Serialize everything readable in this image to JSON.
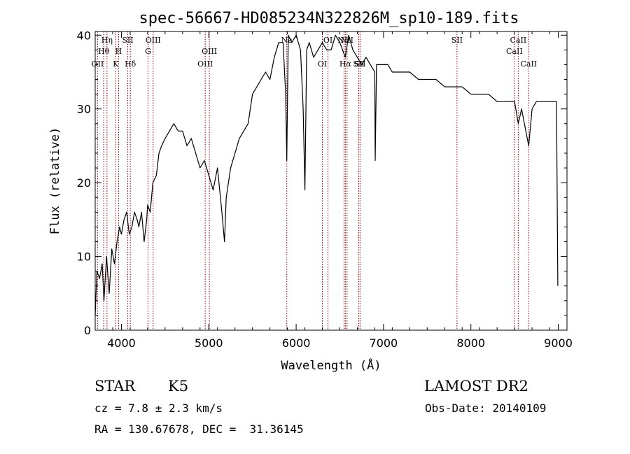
{
  "chart_data": {
    "type": "line",
    "title": "spec-56667-HD085234N322826M_sp10-189.fits",
    "xlabel": "Wavelength (Å)",
    "ylabel": "Flux (relative)",
    "xlim": [
      3700,
      9100
    ],
    "ylim": [
      0,
      40.5
    ],
    "x_ticks": [
      4000,
      5000,
      6000,
      7000,
      8000,
      9000
    ],
    "y_ticks": [
      0,
      10,
      20,
      30,
      40
    ],
    "grid": false,
    "series": [
      {
        "x": [
          3700,
          3720,
          3750,
          3780,
          3800,
          3830,
          3860,
          3890,
          3920,
          3950,
          3980,
          4000,
          4030,
          4060,
          4090,
          4120,
          4150,
          4180,
          4200,
          4230,
          4260,
          4290,
          4300,
          4330,
          4360,
          4400,
          4430,
          4460,
          4500,
          4550,
          4600,
          4650,
          4700,
          4750,
          4800,
          4850,
          4900,
          4950,
          5000,
          5050,
          5100,
          5150,
          5180,
          5200,
          5250,
          5300,
          5350,
          5400,
          5450,
          5500,
          5550,
          5600,
          5650,
          5700,
          5750,
          5800,
          5850,
          5880,
          5893,
          5910,
          5950,
          6000,
          6050,
          6080,
          6100,
          6120,
          6150,
          6200,
          6250,
          6300,
          6350,
          6400,
          6450,
          6500,
          6563,
          6600,
          6650,
          6700,
          6750,
          6800,
          6850,
          6900,
          6905,
          6920,
          6950,
          7000,
          7050,
          7100,
          7150,
          7200,
          7300,
          7400,
          7500,
          7600,
          7700,
          7800,
          7900,
          8000,
          8100,
          8200,
          8300,
          8400,
          8500,
          8542,
          8580,
          8662,
          8700,
          8750,
          8800,
          8850,
          8900,
          8950,
          8980,
          8995
        ],
        "y": [
          2,
          8,
          7,
          9,
          4,
          10,
          5,
          11,
          9,
          12,
          14,
          13,
          15,
          16,
          13,
          14,
          16,
          15,
          14,
          16,
          12,
          15,
          17,
          16,
          20,
          21,
          24,
          25,
          26,
          27,
          28,
          27,
          27,
          25,
          26,
          24,
          22,
          23,
          21,
          19,
          22,
          16,
          12,
          18,
          22,
          24,
          26,
          27,
          28,
          32,
          33,
          34,
          35,
          34,
          37,
          39,
          39,
          32,
          23,
          40,
          39,
          40,
          38,
          30,
          19,
          38,
          39,
          37,
          38,
          39,
          38,
          38,
          40,
          39,
          37,
          40,
          38,
          37,
          36,
          37,
          36,
          35,
          23,
          36,
          36,
          36,
          36,
          35,
          35,
          35,
          35,
          34,
          34,
          34,
          33,
          33,
          33,
          32,
          32,
          32,
          31,
          31,
          31,
          28,
          30,
          25,
          30,
          31,
          31,
          31,
          31,
          31,
          31,
          6
        ]
      }
    ],
    "line_markers": [
      {
        "label": "OII",
        "x": 3727,
        "row": 3
      },
      {
        "label": "Hθ",
        "x": 3797,
        "row": 2
      },
      {
        "label": "Hη",
        "x": 3835,
        "row": 1
      },
      {
        "label": "K",
        "x": 3934,
        "row": 3
      },
      {
        "label": "H",
        "x": 3968,
        "row": 2
      },
      {
        "label": "SII",
        "x": 4072,
        "row": 1
      },
      {
        "label": "Hδ",
        "x": 4102,
        "row": 3
      },
      {
        "label": "G",
        "x": 4305,
        "row": 2
      },
      {
        "label": "OIII",
        "x": 4363,
        "row": 1
      },
      {
        "label": "OIII",
        "x": 4959,
        "row": 3
      },
      {
        "label": "OIII",
        "x": 5007,
        "row": 2
      },
      {
        "label": "Na",
        "x": 5893,
        "row": 1
      },
      {
        "label": "OI",
        "x": 6300,
        "row": 3
      },
      {
        "label": "OI",
        "x": 6364,
        "row": 1
      },
      {
        "label": "NII",
        "x": 6548,
        "row": 1
      },
      {
        "label": "Hα",
        "x": 6563,
        "row": 3
      },
      {
        "label": "NII",
        "x": 6583,
        "row": 1
      },
      {
        "label": "SII",
        "x": 6716,
        "row": 3
      },
      {
        "label": "SII",
        "x": 6731,
        "row": 3
      },
      {
        "label": "SII",
        "x": 7841,
        "row": 1
      },
      {
        "label": "CaII",
        "x": 8498,
        "row": 2
      },
      {
        "label": "CaII",
        "x": 8542,
        "row": 1
      },
      {
        "label": "CaII",
        "x": 8662,
        "row": 3
      }
    ],
    "colors": {
      "spectrum": "#000000",
      "marker": "#8b0000",
      "axes": "#000000"
    }
  },
  "info": {
    "object_class": "STAR",
    "subclass": "K5",
    "survey": "LAMOST DR2",
    "redshift": "cz = 7.8 ± 2.3 km/s",
    "obs_date": "Obs-Date: 20140109",
    "coords": "RA = 130.67678, DEC =  31.36145"
  }
}
